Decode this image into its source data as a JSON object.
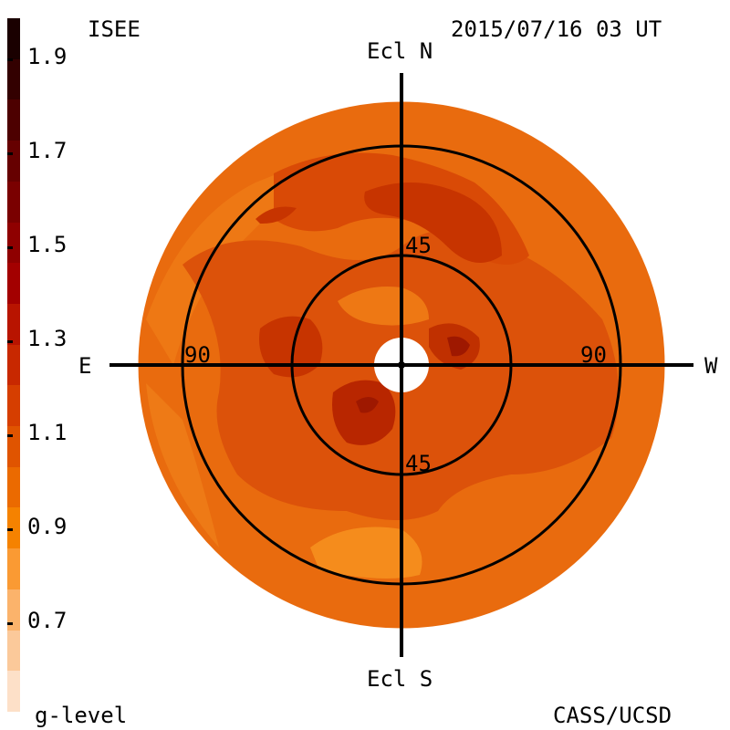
{
  "header": {
    "left_label": "ISEE",
    "timestamp": "2015/07/16 03 UT"
  },
  "footer": {
    "legend_title": "g-level",
    "credit": "CASS/UCSD"
  },
  "directions": {
    "north": "Ecl N",
    "south": "Ecl S",
    "east": "E",
    "west": "W"
  },
  "ring_labels": {
    "inner_top": "45",
    "inner_bottom": "45",
    "outer_left": "90",
    "outer_right": "90"
  },
  "colorbar": {
    "labels": [
      "1.9",
      "1.7",
      "1.5",
      "1.3",
      "1.1",
      "0.9",
      "0.7"
    ],
    "colors": [
      "#1a0000",
      "#330000",
      "#4d0000",
      "#660000",
      "#7a0000",
      "#8f0000",
      "#a30000",
      "#b81400",
      "#c82800",
      "#d63e00",
      "#e05400",
      "#eb6a00",
      "#f58200",
      "#fa9a33",
      "#fbb36b",
      "#fbc99a",
      "#fde0c8"
    ]
  },
  "colors": {
    "background": "#e86a10",
    "mid": "#d94e00",
    "dark": "#c23000",
    "darker": "#a01800",
    "light": "#f58a1a"
  }
}
